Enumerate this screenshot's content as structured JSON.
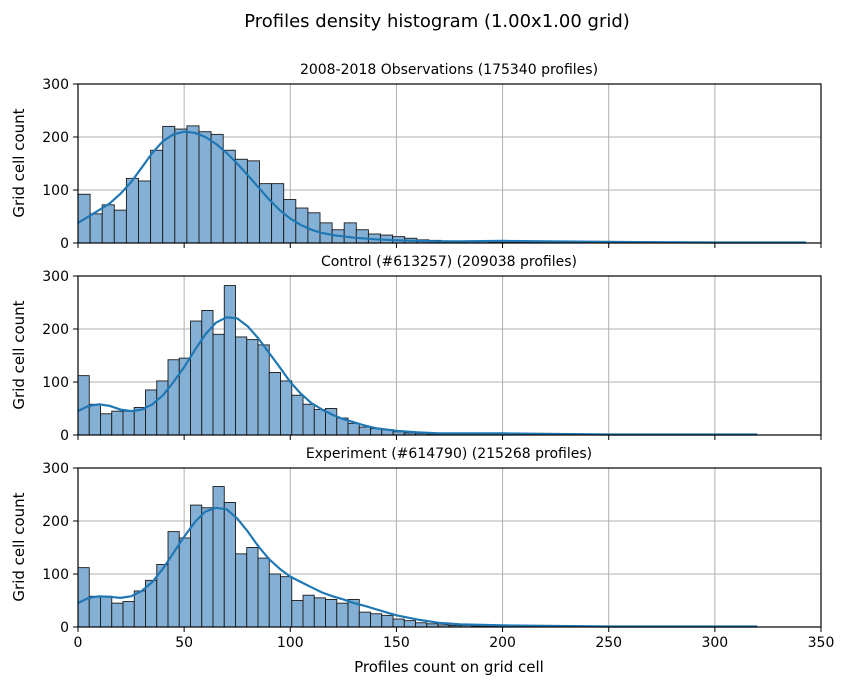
{
  "figure": {
    "title": "Profiles density histogram (1.00x1.00 grid)"
  },
  "style": {
    "bar_fill": "#85b0d5",
    "bar_edge": "#1a1a1a",
    "kde_color": "#1f77b4",
    "grid_color": "#b0b0b0"
  },
  "chart_data": [
    {
      "type": "bar",
      "title": "2008-2018 Observations (175340 profiles)",
      "xlabel": "",
      "ylabel": "Grid cell count",
      "xlim": [
        0,
        350
      ],
      "ylim": [
        0,
        300
      ],
      "xticks": [
        0,
        50,
        100,
        150,
        200,
        250,
        300,
        350
      ],
      "yticks": [
        0,
        100,
        200,
        300
      ],
      "grid": true,
      "bin_start": 0,
      "bin_width": 5.7,
      "values": [
        92,
        55,
        72,
        62,
        122,
        117,
        175,
        220,
        215,
        221,
        210,
        205,
        175,
        158,
        155,
        112,
        112,
        82,
        66,
        57,
        38,
        25,
        38,
        25,
        17,
        15,
        12,
        9,
        6,
        5,
        4,
        3,
        3,
        3,
        2,
        2,
        2,
        2,
        2,
        1,
        1,
        1,
        1,
        1,
        1,
        1,
        1,
        1,
        1,
        1,
        1,
        1,
        1,
        1,
        1,
        1,
        1,
        1,
        1,
        1
      ],
      "kde": {
        "x": [
          0,
          5,
          10,
          15,
          20,
          25,
          30,
          35,
          40,
          45,
          50,
          55,
          60,
          65,
          70,
          75,
          80,
          85,
          90,
          95,
          100,
          105,
          110,
          115,
          120,
          130,
          140,
          150,
          160,
          170,
          180,
          200,
          220,
          250,
          300,
          343
        ],
        "y": [
          38,
          50,
          62,
          75,
          93,
          115,
          142,
          170,
          192,
          205,
          210,
          208,
          200,
          187,
          170,
          150,
          128,
          105,
          82,
          62,
          46,
          34,
          25,
          19,
          15,
          10,
          7,
          5,
          4,
          3,
          3,
          4,
          3,
          2,
          1,
          1
        ]
      }
    },
    {
      "type": "bar",
      "title": "Control (#613257) (209038 profiles)",
      "xlabel": "",
      "ylabel": "Grid cell count",
      "xlim": [
        0,
        350
      ],
      "ylim": [
        0,
        300
      ],
      "xticks": [
        0,
        50,
        100,
        150,
        200,
        250,
        300,
        350
      ],
      "yticks": [
        0,
        100,
        200,
        300
      ],
      "grid": true,
      "bin_start": 0,
      "bin_width": 5.3,
      "values": [
        112,
        58,
        40,
        45,
        45,
        52,
        85,
        102,
        142,
        145,
        215,
        235,
        190,
        282,
        185,
        180,
        170,
        118,
        102,
        75,
        58,
        48,
        50,
        32,
        22,
        15,
        12,
        10,
        6,
        4,
        3,
        2,
        2,
        2,
        2,
        1,
        1,
        1,
        1,
        1,
        1,
        1,
        1,
        1,
        1,
        1,
        1,
        1,
        1,
        1,
        1,
        1,
        1,
        1,
        1,
        1,
        1,
        1,
        1,
        1
      ],
      "kde": {
        "x": [
          0,
          5,
          10,
          15,
          20,
          25,
          30,
          35,
          40,
          45,
          50,
          55,
          60,
          65,
          70,
          75,
          80,
          85,
          90,
          95,
          100,
          105,
          110,
          115,
          120,
          125,
          130,
          135,
          140,
          150,
          160,
          170,
          180,
          200,
          220,
          250,
          300,
          320
        ],
        "y": [
          45,
          55,
          58,
          55,
          48,
          45,
          48,
          58,
          75,
          100,
          128,
          160,
          190,
          212,
          222,
          220,
          205,
          182,
          155,
          128,
          100,
          78,
          60,
          48,
          38,
          30,
          24,
          18,
          13,
          8,
          5,
          3,
          3,
          3,
          2,
          1,
          1,
          1
        ]
      }
    },
    {
      "type": "bar",
      "title": "Experiment (#614790) (215268 profiles)",
      "xlabel": "Profiles count on grid cell",
      "ylabel": "Grid cell count",
      "xlim": [
        0,
        350
      ],
      "ylim": [
        0,
        300
      ],
      "xticks": [
        0,
        50,
        100,
        150,
        200,
        250,
        300,
        350
      ],
      "yticks": [
        0,
        100,
        200,
        300
      ],
      "grid": true,
      "bin_start": 0,
      "bin_width": 5.3,
      "values": [
        112,
        58,
        58,
        45,
        48,
        68,
        88,
        118,
        180,
        168,
        230,
        225,
        265,
        235,
        138,
        150,
        130,
        100,
        95,
        50,
        60,
        55,
        52,
        45,
        52,
        28,
        25,
        22,
        15,
        12,
        8,
        6,
        4,
        3,
        3,
        2,
        2,
        1,
        1,
        1,
        1,
        1,
        1,
        1,
        1,
        1,
        1,
        1,
        1,
        1,
        1,
        1,
        1,
        1,
        1,
        1,
        1,
        1,
        1,
        1
      ],
      "kde": {
        "x": [
          0,
          5,
          10,
          15,
          20,
          25,
          30,
          35,
          40,
          45,
          50,
          55,
          60,
          65,
          70,
          75,
          80,
          85,
          90,
          95,
          100,
          105,
          110,
          115,
          120,
          125,
          130,
          135,
          140,
          150,
          160,
          170,
          180,
          200,
          220,
          250,
          300,
          320
        ],
        "y": [
          45,
          55,
          58,
          57,
          55,
          58,
          68,
          85,
          110,
          140,
          170,
          198,
          218,
          225,
          222,
          205,
          180,
          152,
          128,
          110,
          95,
          85,
          75,
          65,
          58,
          52,
          45,
          40,
          34,
          22,
          14,
          8,
          5,
          3,
          2,
          1,
          1,
          1
        ]
      }
    }
  ]
}
